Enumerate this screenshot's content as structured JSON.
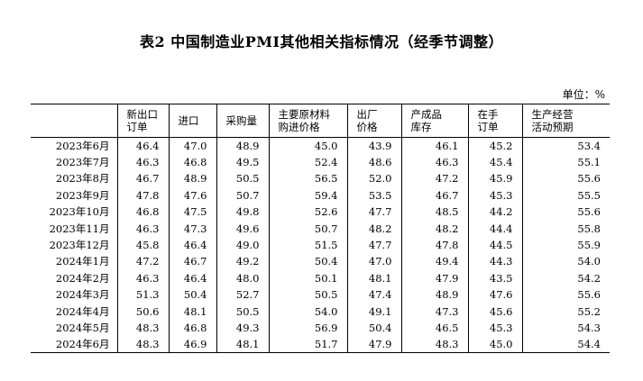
{
  "title": "表2 中国制造业PMI其他相关指标情况（经季节调整）",
  "unit": "单位：%",
  "columns": [
    "",
    "新出口\n订单",
    "进口",
    "采购量",
    "主要原材料\n购进价格",
    "出厂\n价格",
    "产成品\n库存",
    "在手\n订单",
    "生产经营\n活动预期"
  ],
  "rows": [
    [
      "2023年6月",
      "46.4",
      "47.0",
      "48.9",
      "45.0",
      "43.9",
      "46.1",
      "45.2",
      "53.4"
    ],
    [
      "2023年7月",
      "46.3",
      "46.8",
      "49.5",
      "52.4",
      "48.6",
      "46.3",
      "45.4",
      "55.1"
    ],
    [
      "2023年8月",
      "46.7",
      "48.9",
      "50.5",
      "56.5",
      "52.0",
      "47.2",
      "45.9",
      "55.6"
    ],
    [
      "2023年9月",
      "47.8",
      "47.6",
      "50.7",
      "59.4",
      "53.5",
      "46.7",
      "45.3",
      "55.5"
    ],
    [
      "2023年10月",
      "46.8",
      "47.5",
      "49.8",
      "52.6",
      "47.7",
      "48.5",
      "44.2",
      "55.6"
    ],
    [
      "2023年11月",
      "46.3",
      "47.3",
      "49.6",
      "50.7",
      "48.2",
      "48.2",
      "44.4",
      "55.8"
    ],
    [
      "2023年12月",
      "45.8",
      "46.4",
      "49.0",
      "51.5",
      "47.7",
      "47.8",
      "44.5",
      "55.9"
    ],
    [
      "2024年1月",
      "47.2",
      "46.7",
      "49.2",
      "50.4",
      "47.0",
      "49.4",
      "44.3",
      "54.0"
    ],
    [
      "2024年2月",
      "46.3",
      "46.4",
      "48.0",
      "50.1",
      "48.1",
      "47.9",
      "43.5",
      "54.2"
    ],
    [
      "2024年3月",
      "51.3",
      "50.4",
      "52.7",
      "50.5",
      "47.4",
      "48.9",
      "47.6",
      "55.6"
    ],
    [
      "2024年4月",
      "50.6",
      "48.1",
      "50.5",
      "54.0",
      "49.1",
      "47.3",
      "45.6",
      "55.2"
    ],
    [
      "2024年5月",
      "48.3",
      "46.8",
      "49.3",
      "56.9",
      "50.4",
      "46.5",
      "45.3",
      "54.3"
    ],
    [
      "2024年6月",
      "48.3",
      "46.9",
      "48.1",
      "51.7",
      "47.9",
      "48.3",
      "45.0",
      "54.4"
    ]
  ]
}
